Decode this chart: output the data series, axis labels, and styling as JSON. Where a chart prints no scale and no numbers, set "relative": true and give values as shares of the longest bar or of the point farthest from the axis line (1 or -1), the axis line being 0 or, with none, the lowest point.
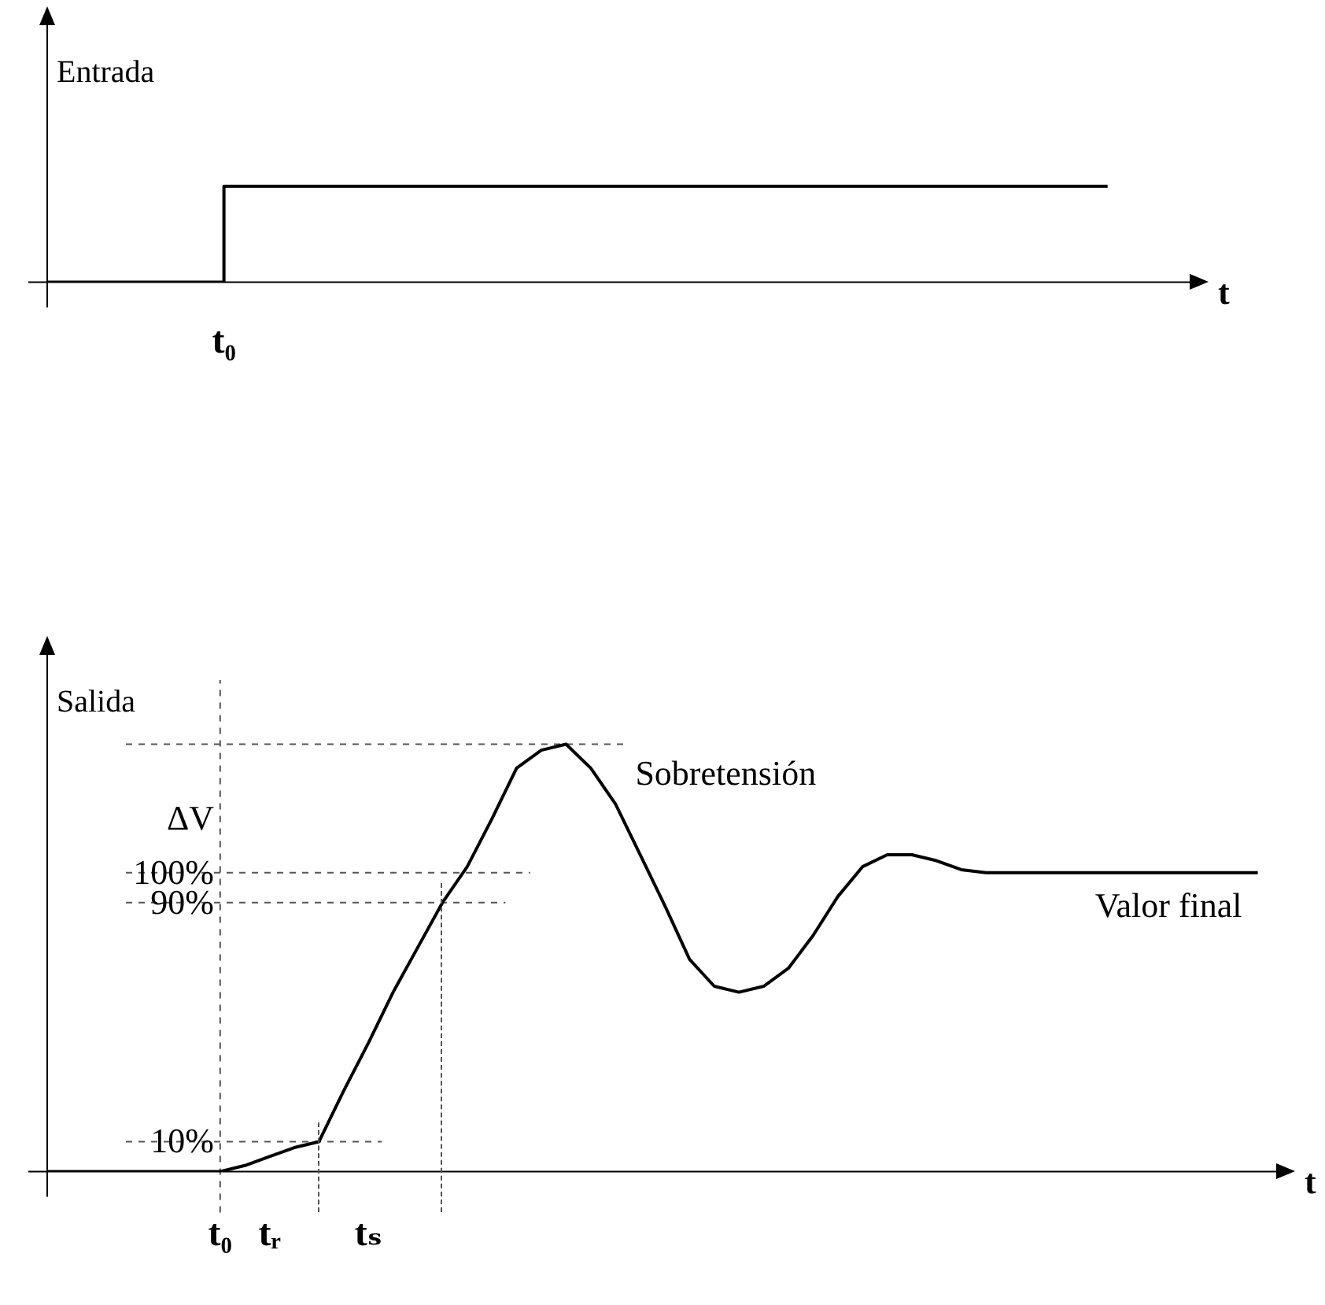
{
  "chart_data": [
    {
      "type": "step",
      "relative": true,
      "ylabel": "Entrada",
      "xlabel": "t",
      "categories": [
        null,
        null,
        null,
        null,
        null,
        null,
        null,
        null,
        null,
        null,
        null,
        null,
        null,
        null
      ],
      "annotations": [
        "t₀"
      ],
      "series": [
        {
          "color": "#000000",
          "values": [
            0,
            0,
            1,
            1,
            1,
            1,
            1,
            1,
            1,
            1,
            1,
            1,
            1,
            null
          ]
        }
      ]
    },
    {
      "type": "line",
      "ylabel": "Salida",
      "xlabel": "t",
      "ylim": [
        0,
        175
      ],
      "categories": [
        null,
        null,
        null,
        null,
        null,
        null,
        null,
        "t₀",
        null,
        "tᵣ",
        null,
        null,
        null,
        "tₛ",
        null,
        null,
        null,
        null,
        null,
        null,
        null,
        null,
        null,
        null,
        null,
        null,
        null,
        null,
        null,
        null,
        null,
        null,
        null,
        null,
        null,
        null,
        null,
        null,
        null,
        null,
        null,
        null,
        null,
        null,
        null,
        null,
        null,
        null,
        null,
        null,
        null
      ],
      "yticks": [
        {
          "value": 10,
          "label": "10%"
        },
        {
          "value": 90,
          "label": "90%"
        },
        {
          "value": 100,
          "label": "100%"
        }
      ],
      "series": [
        {
          "color": "#000000",
          "values": [
            0,
            0,
            0,
            0,
            0,
            0,
            0,
            0,
            2,
            5,
            8,
            10,
            27,
            43,
            60,
            75,
            90,
            102,
            118,
            135,
            141,
            143,
            135,
            123,
            106,
            89,
            71,
            62,
            60,
            62,
            68,
            79,
            92,
            102,
            106,
            106,
            104,
            101,
            100,
            100,
            100,
            100,
            100,
            100,
            100,
            100,
            100,
            100,
            100,
            100,
            null
          ]
        }
      ],
      "ref_lines": [
        {
          "axis": "y",
          "value": 143,
          "line_style": "dashed",
          "label": "Sobretensión"
        },
        {
          "axis": "y",
          "value": 100,
          "line_style": "dashed"
        },
        {
          "axis": "y",
          "value": 90,
          "line_style": "dashed"
        },
        {
          "axis": "y",
          "value": 10,
          "line_style": "dashed"
        },
        {
          "axis": "x",
          "value": "t₀",
          "line_style": "dashed"
        }
      ],
      "annotations": [
        "ΔV",
        "Valor final"
      ]
    }
  ]
}
